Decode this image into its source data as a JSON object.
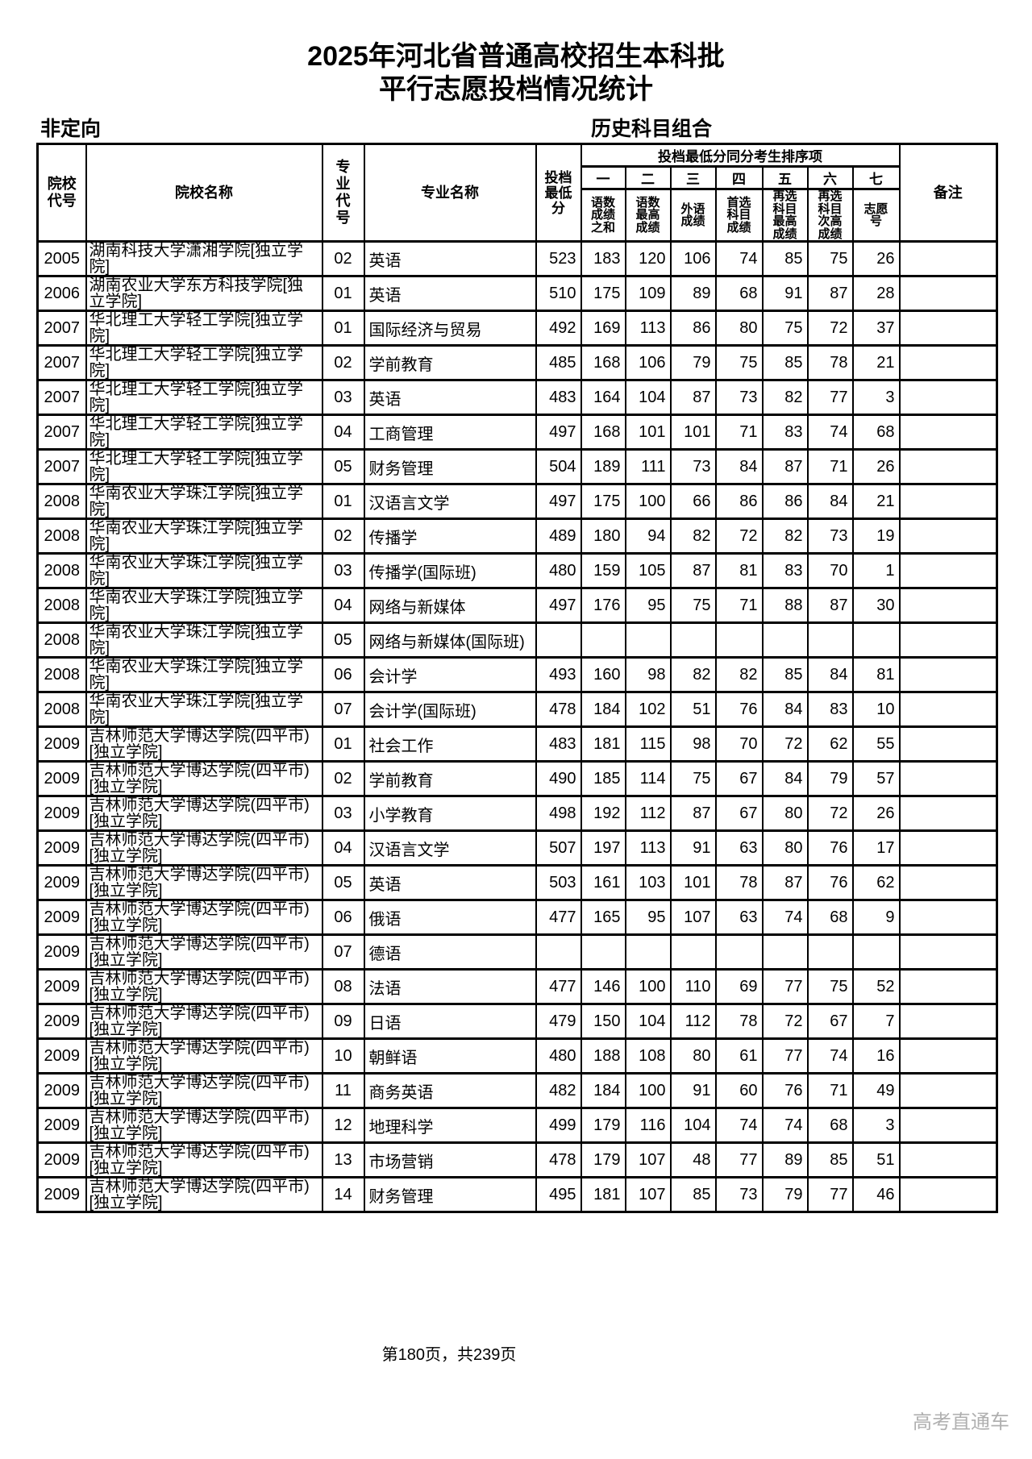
{
  "page": {
    "title_line1": "2025年河北省普通高校招生本科批",
    "title_line2": "平行志愿投档情况统计",
    "left_label": "非定向",
    "right_label": "历史科目组合",
    "footer": "第180页，共239页",
    "watermark": "高考直通车"
  },
  "table": {
    "headers": {
      "college_code": "院校代号",
      "college_name": "院校名称",
      "major_code": "专业代号",
      "major_name": "专业名称",
      "min_score": "投档最低分",
      "sort_group": "投档最低分同分考生排序项",
      "sort_cols": [
        {
          "num": "一",
          "label": "语数成绩之和"
        },
        {
          "num": "二",
          "label": "语数最高成绩"
        },
        {
          "num": "三",
          "label": "外语成绩"
        },
        {
          "num": "四",
          "label": "首选科目成绩"
        },
        {
          "num": "五",
          "label": "再选科目最高成绩"
        },
        {
          "num": "六",
          "label": "再选科目次高成绩"
        },
        {
          "num": "七",
          "label": "志愿号"
        }
      ],
      "remark": "备注"
    },
    "rows": [
      [
        "2005",
        "湖南科技大学潇湘学院[独立学院]",
        "02",
        "英语",
        "523",
        "183",
        "120",
        "106",
        "74",
        "85",
        "75",
        "26",
        ""
      ],
      [
        "2006",
        "湖南农业大学东方科技学院[独立学院]",
        "01",
        "英语",
        "510",
        "175",
        "109",
        "89",
        "68",
        "91",
        "87",
        "28",
        ""
      ],
      [
        "2007",
        "华北理工大学轻工学院[独立学院]",
        "01",
        "国际经济与贸易",
        "492",
        "169",
        "113",
        "86",
        "80",
        "75",
        "72",
        "37",
        ""
      ],
      [
        "2007",
        "华北理工大学轻工学院[独立学院]",
        "02",
        "学前教育",
        "485",
        "168",
        "106",
        "79",
        "75",
        "85",
        "78",
        "21",
        ""
      ],
      [
        "2007",
        "华北理工大学轻工学院[独立学院]",
        "03",
        "英语",
        "483",
        "164",
        "104",
        "87",
        "73",
        "82",
        "77",
        "3",
        ""
      ],
      [
        "2007",
        "华北理工大学轻工学院[独立学院]",
        "04",
        "工商管理",
        "497",
        "168",
        "101",
        "101",
        "71",
        "83",
        "74",
        "68",
        ""
      ],
      [
        "2007",
        "华北理工大学轻工学院[独立学院]",
        "05",
        "财务管理",
        "504",
        "189",
        "111",
        "73",
        "84",
        "87",
        "71",
        "26",
        ""
      ],
      [
        "2008",
        "华南农业大学珠江学院[独立学院]",
        "01",
        "汉语言文学",
        "497",
        "175",
        "100",
        "66",
        "86",
        "86",
        "84",
        "21",
        ""
      ],
      [
        "2008",
        "华南农业大学珠江学院[独立学院]",
        "02",
        "传播学",
        "489",
        "180",
        "94",
        "82",
        "72",
        "82",
        "73",
        "19",
        ""
      ],
      [
        "2008",
        "华南农业大学珠江学院[独立学院]",
        "03",
        "传播学(国际班)",
        "480",
        "159",
        "105",
        "87",
        "81",
        "83",
        "70",
        "1",
        ""
      ],
      [
        "2008",
        "华南农业大学珠江学院[独立学院]",
        "04",
        "网络与新媒体",
        "497",
        "176",
        "95",
        "75",
        "71",
        "88",
        "87",
        "30",
        ""
      ],
      [
        "2008",
        "华南农业大学珠江学院[独立学院]",
        "05",
        "网络与新媒体(国际班)",
        "",
        "",
        "",
        "",
        "",
        "",
        "",
        "",
        ""
      ],
      [
        "2008",
        "华南农业大学珠江学院[独立学院]",
        "06",
        "会计学",
        "493",
        "160",
        "98",
        "82",
        "82",
        "85",
        "84",
        "81",
        ""
      ],
      [
        "2008",
        "华南农业大学珠江学院[独立学院]",
        "07",
        "会计学(国际班)",
        "478",
        "184",
        "102",
        "51",
        "76",
        "84",
        "83",
        "10",
        ""
      ],
      [
        "2009",
        "吉林师范大学博达学院(四平市)[独立学院]",
        "01",
        "社会工作",
        "483",
        "181",
        "115",
        "98",
        "70",
        "72",
        "62",
        "55",
        ""
      ],
      [
        "2009",
        "吉林师范大学博达学院(四平市)[独立学院]",
        "02",
        "学前教育",
        "490",
        "185",
        "114",
        "75",
        "67",
        "84",
        "79",
        "57",
        ""
      ],
      [
        "2009",
        "吉林师范大学博达学院(四平市)[独立学院]",
        "03",
        "小学教育",
        "498",
        "192",
        "112",
        "87",
        "67",
        "80",
        "72",
        "26",
        ""
      ],
      [
        "2009",
        "吉林师范大学博达学院(四平市)[独立学院]",
        "04",
        "汉语言文学",
        "507",
        "197",
        "113",
        "91",
        "63",
        "80",
        "76",
        "17",
        ""
      ],
      [
        "2009",
        "吉林师范大学博达学院(四平市)[独立学院]",
        "05",
        "英语",
        "503",
        "161",
        "103",
        "101",
        "78",
        "87",
        "76",
        "62",
        ""
      ],
      [
        "2009",
        "吉林师范大学博达学院(四平市)[独立学院]",
        "06",
        "俄语",
        "477",
        "165",
        "95",
        "107",
        "63",
        "74",
        "68",
        "9",
        ""
      ],
      [
        "2009",
        "吉林师范大学博达学院(四平市)[独立学院]",
        "07",
        "德语",
        "",
        "",
        "",
        "",
        "",
        "",
        "",
        "",
        ""
      ],
      [
        "2009",
        "吉林师范大学博达学院(四平市)[独立学院]",
        "08",
        "法语",
        "477",
        "146",
        "100",
        "110",
        "69",
        "77",
        "75",
        "52",
        ""
      ],
      [
        "2009",
        "吉林师范大学博达学院(四平市)[独立学院]",
        "09",
        "日语",
        "479",
        "150",
        "104",
        "112",
        "78",
        "72",
        "67",
        "7",
        ""
      ],
      [
        "2009",
        "吉林师范大学博达学院(四平市)[独立学院]",
        "10",
        "朝鲜语",
        "480",
        "188",
        "108",
        "80",
        "61",
        "77",
        "74",
        "16",
        ""
      ],
      [
        "2009",
        "吉林师范大学博达学院(四平市)[独立学院]",
        "11",
        "商务英语",
        "482",
        "184",
        "100",
        "91",
        "60",
        "76",
        "71",
        "49",
        ""
      ],
      [
        "2009",
        "吉林师范大学博达学院(四平市)[独立学院]",
        "12",
        "地理科学",
        "499",
        "179",
        "116",
        "104",
        "74",
        "74",
        "68",
        "3",
        ""
      ],
      [
        "2009",
        "吉林师范大学博达学院(四平市)[独立学院]",
        "13",
        "市场营销",
        "478",
        "179",
        "107",
        "48",
        "77",
        "89",
        "85",
        "51",
        ""
      ],
      [
        "2009",
        "吉林师范大学博达学院(四平市)[独立学院]",
        "14",
        "财务管理",
        "495",
        "181",
        "107",
        "85",
        "73",
        "79",
        "77",
        "46",
        ""
      ]
    ]
  }
}
